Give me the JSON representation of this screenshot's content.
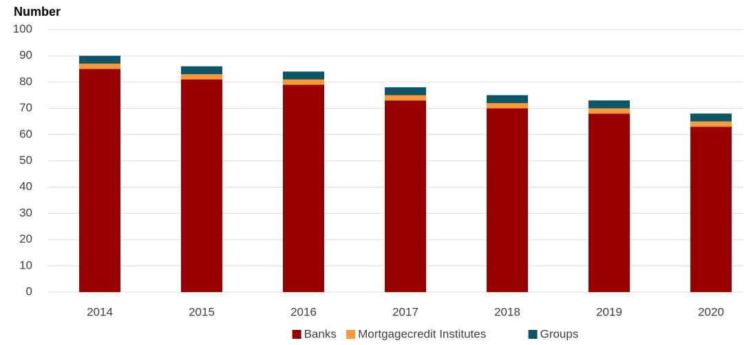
{
  "chart_data": {
    "type": "stacked_bar",
    "title": "Number",
    "categories": [
      "2014",
      "2015",
      "2016",
      "2017",
      "2018",
      "2019",
      "2020"
    ],
    "series": [
      {
        "name": "Banks",
        "color": "#990000",
        "values": [
          85,
          81,
          79,
          73,
          70,
          68,
          63
        ]
      },
      {
        "name": "Mortgagecredit Institutes",
        "color": "#f79a3a",
        "values": [
          2,
          2,
          2,
          2,
          2,
          2,
          2
        ]
      },
      {
        "name": "Groups",
        "color": "#0b5566",
        "values": [
          3,
          3,
          3,
          3,
          3,
          3,
          3
        ]
      }
    ],
    "ylim": [
      0,
      100
    ],
    "yticks": [
      0,
      10,
      20,
      30,
      40,
      50,
      60,
      70,
      80,
      90,
      100
    ],
    "grid": true,
    "legend": "bottom"
  }
}
